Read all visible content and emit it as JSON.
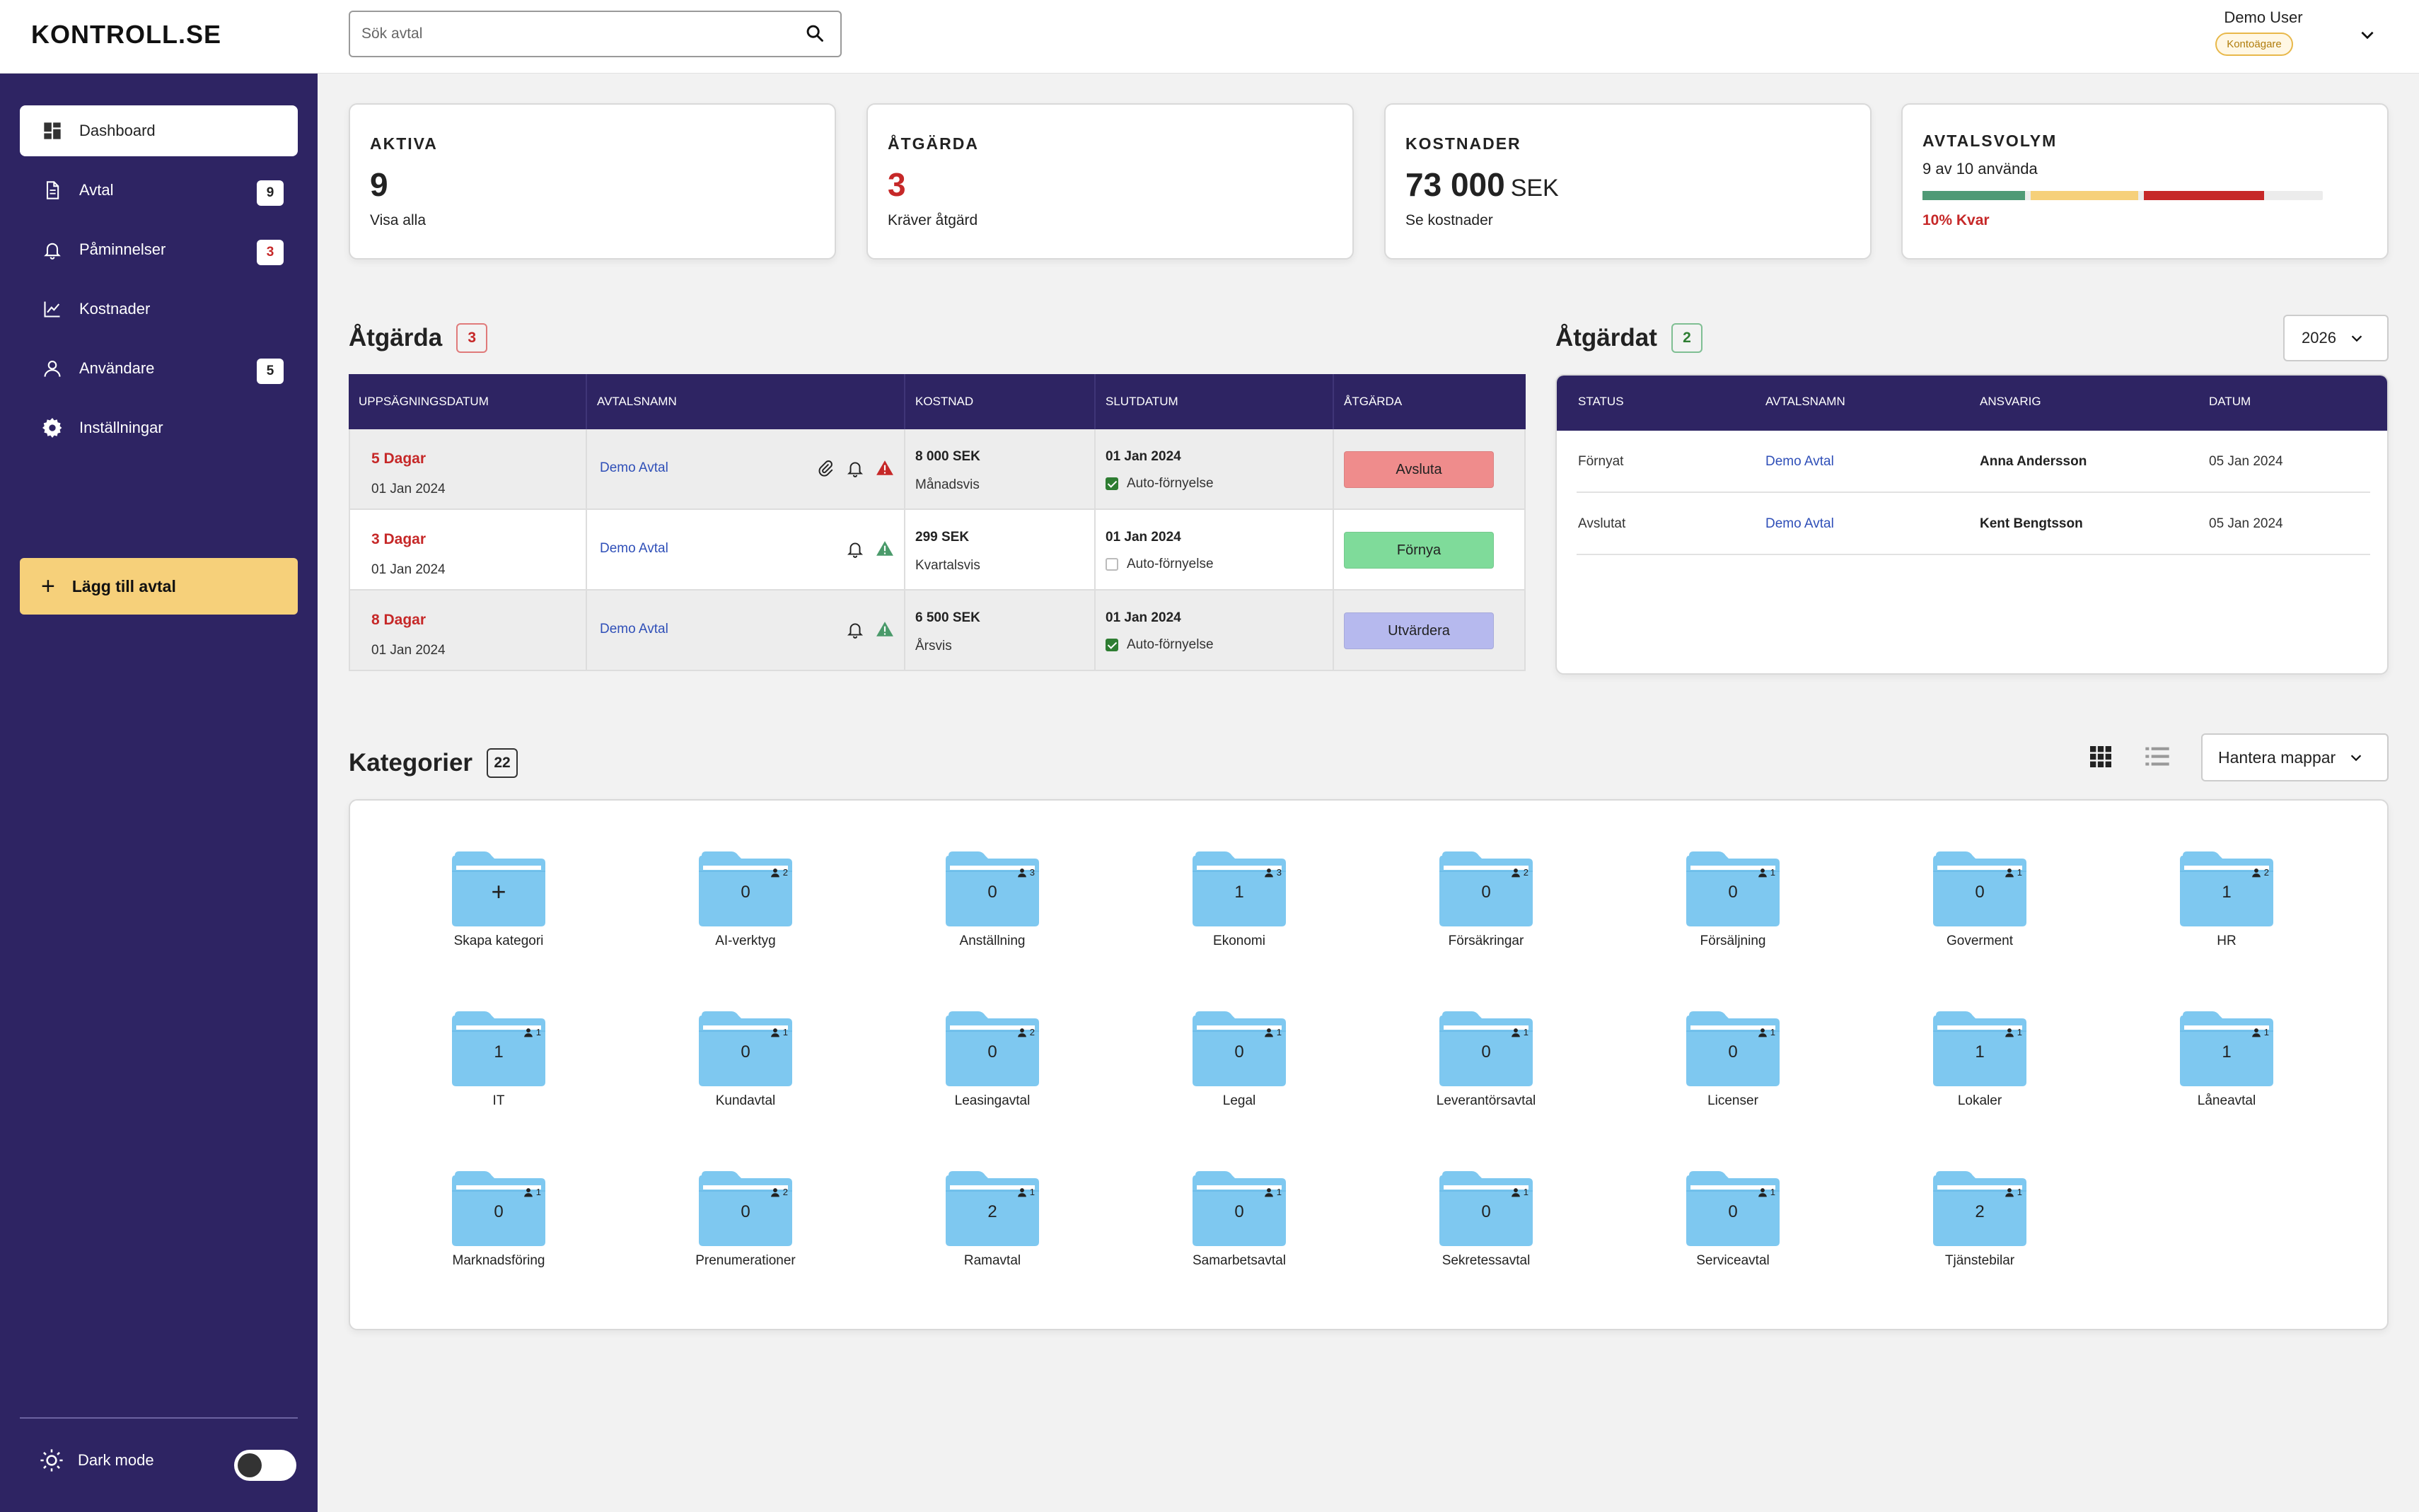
{
  "header": {
    "logo": "KONTROLL.SE",
    "search_placeholder": "Sök avtal",
    "user_name": "Demo User",
    "user_role": "Kontoägare"
  },
  "sidebar": {
    "items": [
      {
        "label": "Dashboard",
        "icon": "dashboard-icon",
        "badge": ""
      },
      {
        "label": "Avtal",
        "icon": "document-icon",
        "badge": "9"
      },
      {
        "label": "Påminnelser",
        "icon": "bell-icon",
        "badge": "3"
      },
      {
        "label": "Kostnader",
        "icon": "chart-line-icon",
        "badge": ""
      },
      {
        "label": "Användare",
        "icon": "user-icon",
        "badge": "5"
      },
      {
        "label": "Inställningar",
        "icon": "gear-icon",
        "badge": ""
      }
    ],
    "add_button": "Lägg till avtal",
    "dark_mode": "Dark mode"
  },
  "stats": {
    "aktiva": {
      "label": "AKTIVA",
      "value": "9",
      "link": "Visa alla"
    },
    "atgarda": {
      "label": "ÅTGÄRDA",
      "value": "3",
      "link": "Kräver åtgärd"
    },
    "kostnader": {
      "label": "KOSTNADER",
      "value": "73 000",
      "unit": "SEK",
      "link": "Se kostnader"
    },
    "volym": {
      "label": "AVTALSVOLYM",
      "sub": "9 av 10 använda",
      "remaining": "10% Kvar",
      "used_fraction": 0.9
    }
  },
  "action_section": {
    "title": "Åtgärda",
    "count": "3",
    "headers": [
      "UPPSÄGNINGSDATUM",
      "AVTALSNAMN",
      "KOSTNAD",
      "SLUTDATUM",
      "ÅTGÄRDA"
    ],
    "rows": [
      {
        "days": "5 Dagar",
        "date": "01 Jan 2024",
        "name": "Demo Avtal",
        "cost": "8 000 SEK",
        "period": "Månadsvis",
        "end": "01 Jan 2024",
        "auto": "Auto-förnyelse",
        "auto_on": true,
        "action": "Avsluta",
        "action_color": "#ef8c8c",
        "has_clip": true,
        "warn_color": "#c62828"
      },
      {
        "days": "3 Dagar",
        "date": "01 Jan 2024",
        "name": "Demo Avtal",
        "cost": "299 SEK",
        "period": "Kvartalsvis",
        "end": "01 Jan 2024",
        "auto": "Auto-förnyelse",
        "auto_on": false,
        "action": "Förnya",
        "action_color": "#7fdb9a",
        "has_clip": false,
        "warn_color": "#4a9a6a"
      },
      {
        "days": "8 Dagar",
        "date": "01 Jan 2024",
        "name": "Demo Avtal",
        "cost": "6 500 SEK",
        "period": "Årsvis",
        "end": "01 Jan 2024",
        "auto": "Auto-förnyelse",
        "auto_on": true,
        "action": "Utvärdera",
        "action_color": "#b6b9ee",
        "has_clip": false,
        "warn_color": "#4a9a6a"
      }
    ]
  },
  "done_section": {
    "title": "Åtgärdat",
    "count": "2",
    "year": "2026",
    "headers": [
      "STATUS",
      "AVTALSNAMN",
      "ANSVARIG",
      "DATUM"
    ],
    "rows": [
      {
        "status": "Förnyat",
        "name": "Demo Avtal",
        "owner": "Anna Andersson",
        "date": "05 Jan 2024"
      },
      {
        "status": "Avslutat",
        "name": "Demo Avtal",
        "owner": "Kent Bengtsson",
        "date": "05 Jan 2024"
      }
    ]
  },
  "categories": {
    "title": "Kategorier",
    "count": "22",
    "manage_button": "Hantera mappar",
    "create_label": "Skapa kategori",
    "folders": [
      {
        "name": "AI-verktyg",
        "count": "0",
        "users": "2"
      },
      {
        "name": "Anställning",
        "count": "0",
        "users": "3"
      },
      {
        "name": "Ekonomi",
        "count": "1",
        "users": "3"
      },
      {
        "name": "Försäkringar",
        "count": "0",
        "users": "2"
      },
      {
        "name": "Försäljning",
        "count": "0",
        "users": "1"
      },
      {
        "name": "Goverment",
        "count": "0",
        "users": "1"
      },
      {
        "name": "HR",
        "count": "1",
        "users": "2"
      },
      {
        "name": "IT",
        "count": "1",
        "users": "1"
      },
      {
        "name": "Kundavtal",
        "count": "0",
        "users": "1"
      },
      {
        "name": "Leasingavtal",
        "count": "0",
        "users": "2"
      },
      {
        "name": "Legal",
        "count": "0",
        "users": "1"
      },
      {
        "name": "Leverantörsavtal",
        "count": "0",
        "users": "1"
      },
      {
        "name": "Licenser",
        "count": "0",
        "users": "1"
      },
      {
        "name": "Lokaler",
        "count": "1",
        "users": "1"
      },
      {
        "name": "Låneavtal",
        "count": "1",
        "users": "1"
      },
      {
        "name": "Marknadsföring",
        "count": "0",
        "users": "1"
      },
      {
        "name": "Prenumerationer",
        "count": "0",
        "users": "2"
      },
      {
        "name": "Ramavtal",
        "count": "2",
        "users": "1"
      },
      {
        "name": "Samarbetsavtal",
        "count": "0",
        "users": "1"
      },
      {
        "name": "Sekretessavtal",
        "count": "0",
        "users": "1"
      },
      {
        "name": "Serviceavtal",
        "count": "0",
        "users": "1"
      },
      {
        "name": "Tjänstebilar",
        "count": "2",
        "users": "1"
      }
    ]
  },
  "colors": {
    "sidebar": "#2e2463",
    "accent_yellow": "#f6d07a",
    "danger": "#c62828",
    "folder": "#7ec8f0"
  }
}
